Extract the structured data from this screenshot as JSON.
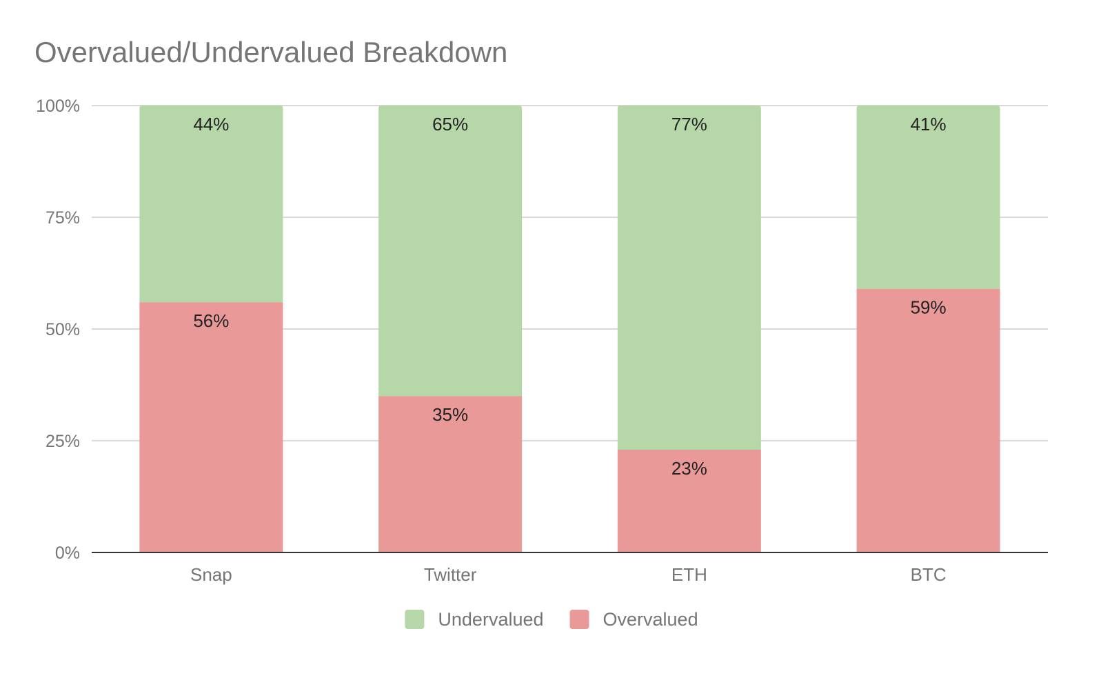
{
  "chart_data": {
    "type": "bar",
    "stacked": true,
    "title": "Overvalued/Undervalued Breakdown",
    "categories": [
      "Snap",
      "Twitter",
      "ETH",
      "BTC"
    ],
    "series": [
      {
        "name": "Overvalued",
        "color": "#ea9999",
        "values": [
          56,
          35,
          23,
          59
        ],
        "labels": [
          "56%",
          "35%",
          "23%",
          "59%"
        ]
      },
      {
        "name": "Undervalued",
        "color": "#b6d7a8",
        "values": [
          44,
          65,
          77,
          41
        ],
        "labels": [
          "44%",
          "65%",
          "77%",
          "41%"
        ]
      }
    ],
    "ylim": [
      0,
      100
    ],
    "yticks": [
      0,
      25,
      50,
      75,
      100
    ],
    "ytick_labels": [
      "0%",
      "25%",
      "50%",
      "75%",
      "100%"
    ],
    "grid": true,
    "legend": {
      "position": "bottom",
      "order": [
        "Undervalued",
        "Overvalued"
      ]
    },
    "gridline_color": "#cccccc",
    "axis_color": "#333333",
    "text_color": "#757575"
  }
}
